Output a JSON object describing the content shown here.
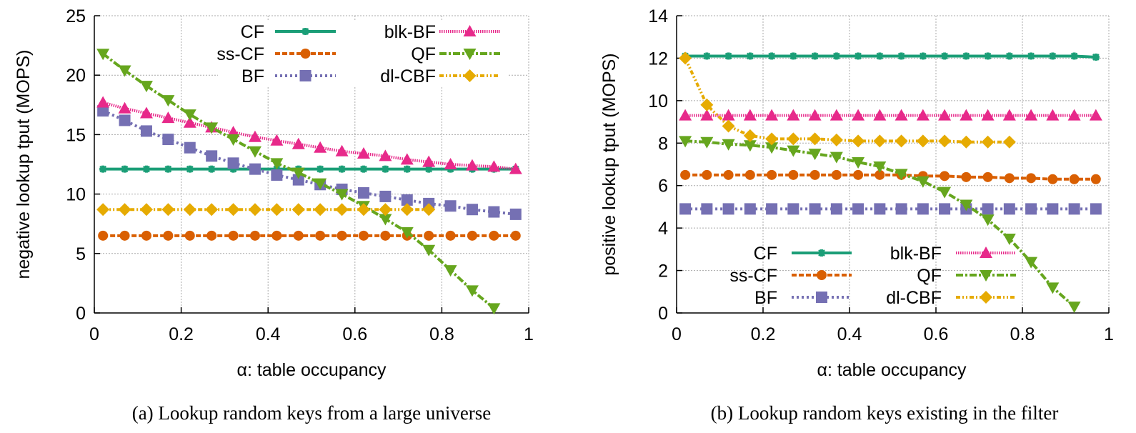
{
  "chart_data": [
    {
      "type": "line",
      "id": "a",
      "title": "",
      "caption": "(a)  Lookup random keys from a large universe",
      "xlabel": "α: table occupancy",
      "ylabel": "negative lookup tput (MOPS)",
      "xlim": [
        0,
        1
      ],
      "ylim": [
        0,
        25
      ],
      "xticks": [
        "0",
        "0.2",
        "0.4",
        "0.6",
        "0.8",
        "1"
      ],
      "xtick_values": [
        0,
        0.2,
        0.4,
        0.6,
        0.8,
        1
      ],
      "yticks": [
        "0",
        "5",
        "10",
        "15",
        "20",
        "25"
      ],
      "ytick_values": [
        0,
        5,
        10,
        15,
        20,
        25
      ],
      "grid": true,
      "legend_position": "top-right",
      "x": [
        0.02,
        0.07,
        0.12,
        0.17,
        0.22,
        0.27,
        0.32,
        0.37,
        0.42,
        0.47,
        0.52,
        0.57,
        0.62,
        0.67,
        0.72,
        0.77,
        0.82,
        0.87,
        0.92,
        0.97
      ],
      "series": [
        {
          "name": "CF",
          "color": "#1b9e77",
          "marker": "star",
          "dash": "solid",
          "values": [
            12.1,
            12.1,
            12.1,
            12.1,
            12.1,
            12.1,
            12.1,
            12.1,
            12.1,
            12.1,
            12.1,
            12.1,
            12.1,
            12.1,
            12.1,
            12.1,
            12.1,
            12.1,
            12.1,
            12.1
          ]
        },
        {
          "name": "ss-CF",
          "color": "#d95f02",
          "marker": "circle",
          "dash": "dashed",
          "values": [
            6.5,
            6.5,
            6.5,
            6.5,
            6.5,
            6.5,
            6.5,
            6.5,
            6.5,
            6.5,
            6.5,
            6.5,
            6.5,
            6.5,
            6.5,
            6.5,
            6.5,
            6.5,
            6.5,
            6.5
          ]
        },
        {
          "name": "BF",
          "color": "#7570b3",
          "marker": "square",
          "dash": "dotted",
          "values": [
            17.0,
            16.2,
            15.3,
            14.6,
            13.9,
            13.2,
            12.6,
            12.1,
            11.6,
            11.2,
            10.8,
            10.4,
            10.1,
            9.8,
            9.5,
            9.2,
            9.0,
            8.7,
            8.5,
            8.3
          ]
        },
        {
          "name": "blk-BF",
          "color": "#e7298a",
          "marker": "triangle-up",
          "dash": "fine-dotted",
          "values": [
            17.7,
            17.2,
            16.8,
            16.4,
            16.0,
            15.6,
            15.2,
            14.8,
            14.5,
            14.2,
            13.9,
            13.6,
            13.4,
            13.2,
            12.9,
            12.7,
            12.5,
            12.4,
            12.3,
            12.1
          ]
        },
        {
          "name": "QF",
          "color": "#66a61e",
          "marker": "triangle-down",
          "dash": "dash-dot",
          "values": [
            21.8,
            20.4,
            19.1,
            17.9,
            16.7,
            15.6,
            14.6,
            13.6,
            12.6,
            11.8,
            10.9,
            10.0,
            9.0,
            7.9,
            6.8,
            5.3,
            3.6,
            1.9,
            0.4,
            null
          ]
        },
        {
          "name": "dl-CBF",
          "color": "#e6ab02",
          "marker": "diamond",
          "dash": "dash-dot-dot",
          "values": [
            8.7,
            8.7,
            8.7,
            8.7,
            8.7,
            8.7,
            8.7,
            8.7,
            8.7,
            8.7,
            8.7,
            8.7,
            8.7,
            8.7,
            8.7,
            8.7,
            null,
            null,
            null,
            null
          ]
        }
      ]
    },
    {
      "type": "line",
      "id": "b",
      "title": "",
      "caption": "(b)  Lookup random keys existing in the filter",
      "xlabel": "α: table occupancy",
      "ylabel": "positive lookup tput (MOPS)",
      "xlim": [
        0,
        1
      ],
      "ylim": [
        0,
        14
      ],
      "xticks": [
        "0",
        "0.2",
        "0.4",
        "0.6",
        "0.8",
        "1"
      ],
      "xtick_values": [
        0,
        0.2,
        0.4,
        0.6,
        0.8,
        1
      ],
      "yticks": [
        "0",
        "2",
        "4",
        "6",
        "8",
        "10",
        "12",
        "14"
      ],
      "ytick_values": [
        0,
        2,
        4,
        6,
        8,
        10,
        12,
        14
      ],
      "grid": true,
      "legend_position": "bottom-left",
      "x": [
        0.02,
        0.07,
        0.12,
        0.17,
        0.22,
        0.27,
        0.32,
        0.37,
        0.42,
        0.47,
        0.52,
        0.57,
        0.62,
        0.67,
        0.72,
        0.77,
        0.82,
        0.87,
        0.92,
        0.97
      ],
      "series": [
        {
          "name": "CF",
          "color": "#1b9e77",
          "marker": "star",
          "dash": "solid",
          "values": [
            12.1,
            12.1,
            12.1,
            12.1,
            12.1,
            12.1,
            12.1,
            12.1,
            12.1,
            12.1,
            12.1,
            12.1,
            12.1,
            12.1,
            12.1,
            12.1,
            12.1,
            12.1,
            12.1,
            12.05
          ]
        },
        {
          "name": "ss-CF",
          "color": "#d95f02",
          "marker": "circle",
          "dash": "dashed",
          "values": [
            6.5,
            6.5,
            6.5,
            6.5,
            6.5,
            6.5,
            6.5,
            6.5,
            6.5,
            6.5,
            6.5,
            6.45,
            6.45,
            6.4,
            6.4,
            6.35,
            6.35,
            6.3,
            6.3,
            6.3
          ]
        },
        {
          "name": "BF",
          "color": "#7570b3",
          "marker": "square",
          "dash": "dotted",
          "values": [
            4.9,
            4.9,
            4.9,
            4.9,
            4.9,
            4.9,
            4.9,
            4.9,
            4.9,
            4.9,
            4.9,
            4.9,
            4.9,
            4.9,
            4.9,
            4.9,
            4.9,
            4.9,
            4.9,
            4.9
          ]
        },
        {
          "name": "blk-BF",
          "color": "#e7298a",
          "marker": "triangle-up",
          "dash": "fine-dotted",
          "values": [
            9.3,
            9.3,
            9.3,
            9.3,
            9.3,
            9.3,
            9.3,
            9.3,
            9.3,
            9.3,
            9.3,
            9.3,
            9.3,
            9.3,
            9.3,
            9.3,
            9.3,
            9.3,
            9.3,
            9.3
          ]
        },
        {
          "name": "QF",
          "color": "#66a61e",
          "marker": "triangle-down",
          "dash": "dash-dot",
          "values": [
            8.1,
            8.05,
            7.95,
            7.9,
            7.8,
            7.65,
            7.5,
            7.35,
            7.1,
            6.9,
            6.55,
            6.2,
            5.7,
            5.1,
            4.4,
            3.5,
            2.4,
            1.2,
            0.3,
            null
          ]
        },
        {
          "name": "dl-CBF",
          "color": "#e6ab02",
          "marker": "diamond",
          "dash": "dash-dot-dot",
          "values": [
            12.0,
            9.8,
            8.8,
            8.35,
            8.2,
            8.2,
            8.2,
            8.15,
            8.1,
            8.1,
            8.1,
            8.1,
            8.1,
            8.05,
            8.05,
            8.05,
            null,
            null,
            null,
            null
          ]
        }
      ]
    }
  ]
}
